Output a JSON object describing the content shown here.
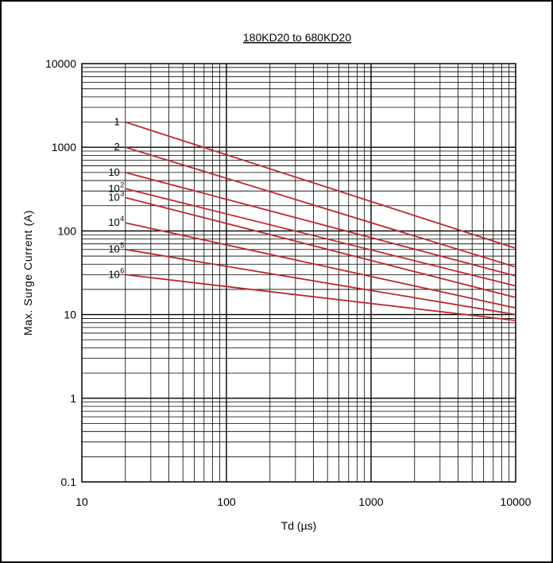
{
  "chart_data": {
    "type": "line",
    "title": "180KD20 to 680KD20",
    "xlabel": "Td (µs)",
    "ylabel": "Max. Surge Current (A)",
    "x_scale": "log",
    "y_scale": "log",
    "xlim": [
      10,
      10000
    ],
    "ylim": [
      0.1,
      10000
    ],
    "grid": true,
    "x_ticks": [
      "10",
      "100",
      "1000",
      "10000"
    ],
    "y_ticks": [
      "0.1",
      "1",
      "10",
      "100",
      "1000",
      "10000"
    ],
    "line_color": "#c0282e",
    "series": [
      {
        "name": "1",
        "label_base": "1",
        "label_exp": "",
        "x": [
          20,
          10000
        ],
        "y": [
          2000,
          62
        ]
      },
      {
        "name": "2",
        "label_base": "2",
        "label_exp": "",
        "x": [
          20,
          10000
        ],
        "y": [
          1000,
          37
        ]
      },
      {
        "name": "10",
        "label_base": "10",
        "label_exp": "",
        "x": [
          20,
          10000
        ],
        "y": [
          500,
          29
        ]
      },
      {
        "name": "10^2",
        "label_base": "10",
        "label_exp": "2",
        "x": [
          20,
          10000
        ],
        "y": [
          320,
          22
        ]
      },
      {
        "name": "10^3",
        "label_base": "10",
        "label_exp": "3",
        "x": [
          20,
          10000
        ],
        "y": [
          250,
          16
        ]
      },
      {
        "name": "10^4",
        "label_base": "10",
        "label_exp": "4",
        "x": [
          20,
          10000
        ],
        "y": [
          125,
          12
        ]
      },
      {
        "name": "10^5",
        "label_base": "10",
        "label_exp": "5",
        "x": [
          20,
          10000
        ],
        "y": [
          60,
          10
        ]
      },
      {
        "name": "10^6",
        "label_base": "10",
        "label_exp": "6",
        "x": [
          20,
          10000
        ],
        "y": [
          30,
          8.5
        ]
      }
    ]
  }
}
